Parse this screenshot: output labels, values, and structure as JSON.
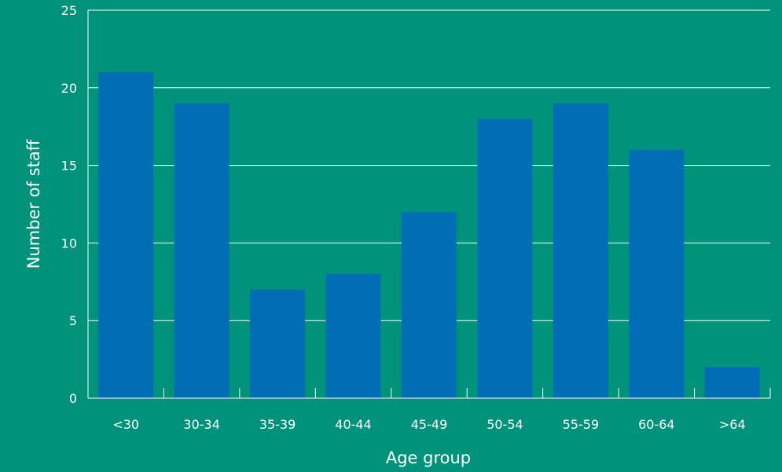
{
  "chart_data": {
    "type": "bar",
    "title": "",
    "xlabel": "Age group",
    "ylabel": "Number of staff",
    "categories": [
      "<30",
      "30-34",
      "35-39",
      "40-44",
      "45-49",
      "50-54",
      "55-59",
      "60-64",
      ">64"
    ],
    "values": [
      21,
      19,
      7,
      8,
      12,
      18,
      19,
      16,
      2
    ],
    "ylim": [
      0,
      25
    ],
    "yticks": [
      0,
      5,
      10,
      15,
      20,
      25
    ],
    "grid": true,
    "legend": "none"
  },
  "colors": {
    "background": "#00927a",
    "bar": "#006db5",
    "grid": "#ffffff",
    "text": "#ffffff"
  }
}
